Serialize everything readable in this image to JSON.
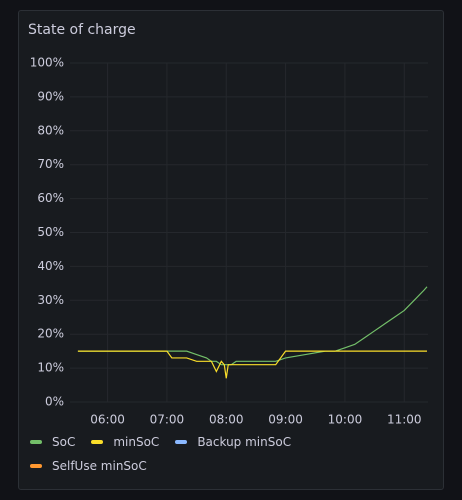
{
  "chart_data": {
    "type": "line",
    "title": "State of charge",
    "x": [
      330,
      360,
      390,
      420,
      425,
      440,
      450,
      460,
      465,
      470,
      475,
      478,
      480,
      482,
      485,
      490,
      510,
      530,
      540,
      560,
      580,
      590,
      600,
      610,
      620,
      630,
      640,
      650,
      660,
      670,
      680,
      683
    ],
    "series": [
      {
        "name": "SoC",
        "color": "#73bf69",
        "values": [
          15,
          15,
          15,
          15,
          15,
          15,
          14,
          13,
          12,
          12,
          11,
          11,
          11,
          11,
          11,
          12,
          12,
          12,
          13,
          14,
          15,
          15,
          16,
          17,
          19,
          21,
          23,
          25,
          27,
          30,
          33,
          34
        ]
      },
      {
        "name": "minSoC",
        "color": "#fade2a",
        "values": [
          15,
          15,
          15,
          15,
          13,
          13,
          12,
          12,
          12,
          9,
          12,
          11,
          7,
          11,
          11,
          11,
          11,
          11,
          15,
          15,
          15,
          15,
          15,
          15,
          15,
          15,
          15,
          15,
          15,
          15,
          15,
          15
        ]
      },
      {
        "name": "Backup minSoC",
        "color": "#8ab8ff",
        "values": [
          null,
          null,
          null,
          null,
          null,
          null,
          null,
          null,
          null,
          null,
          null,
          null,
          null,
          null,
          null,
          null,
          null,
          null,
          null,
          null,
          null,
          null,
          null,
          null,
          null,
          null,
          null,
          null,
          null,
          null,
          null,
          null
        ]
      },
      {
        "name": "SelfUse minSoC",
        "color": "#ff9830",
        "values": [
          null,
          null,
          null,
          null,
          null,
          null,
          null,
          null,
          null,
          null,
          null,
          null,
          null,
          null,
          null,
          null,
          null,
          null,
          null,
          null,
          null,
          null,
          null,
          null,
          null,
          null,
          null,
          null,
          null,
          null,
          null,
          null
        ]
      }
    ],
    "xlim": [
      322,
      684
    ],
    "xticks": [
      {
        "value": 360,
        "label": "06:00"
      },
      {
        "value": 420,
        "label": "07:00"
      },
      {
        "value": 480,
        "label": "08:00"
      },
      {
        "value": 540,
        "label": "09:00"
      },
      {
        "value": 600,
        "label": "10:00"
      },
      {
        "value": 660,
        "label": "11:00"
      }
    ],
    "ylim": [
      0,
      100
    ],
    "yticks": [
      {
        "value": 0,
        "label": "0%"
      },
      {
        "value": 10,
        "label": "10%"
      },
      {
        "value": 20,
        "label": "20%"
      },
      {
        "value": 30,
        "label": "30%"
      },
      {
        "value": 40,
        "label": "40%"
      },
      {
        "value": 50,
        "label": "50%"
      },
      {
        "value": 60,
        "label": "60%"
      },
      {
        "value": 70,
        "label": "70%"
      },
      {
        "value": 80,
        "label": "80%"
      },
      {
        "value": 90,
        "label": "90%"
      },
      {
        "value": 100,
        "label": "100%"
      }
    ],
    "grid": true
  }
}
